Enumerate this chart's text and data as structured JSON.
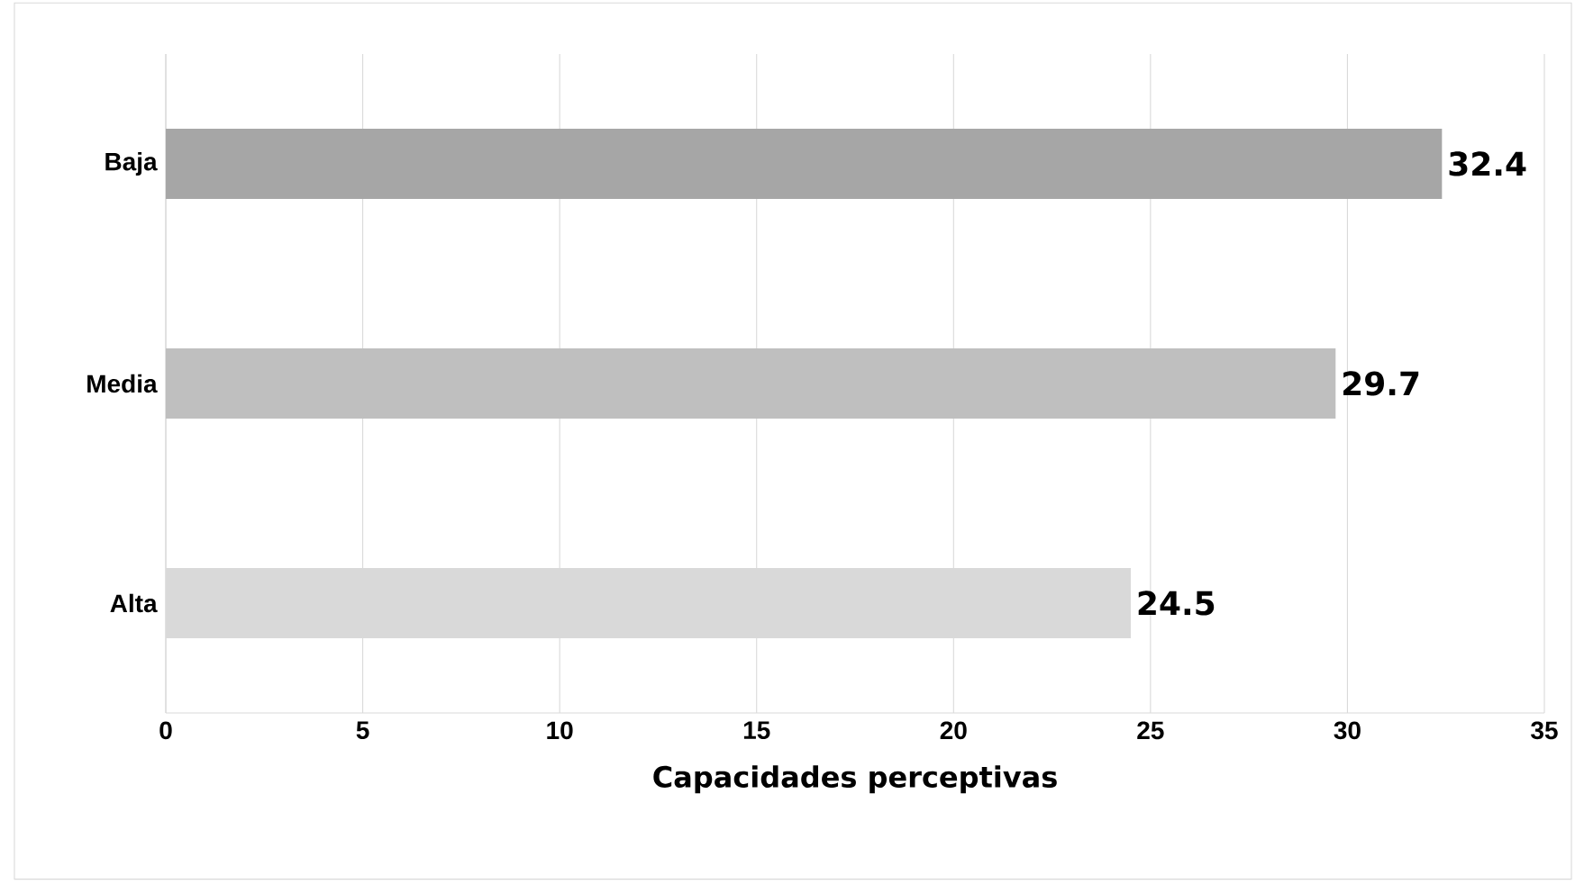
{
  "chart_data": {
    "type": "bar",
    "orientation": "horizontal",
    "xlabel": "Capacidades perceptivas",
    "categories": [
      "Baja",
      "Media",
      "Alta"
    ],
    "values": [
      32.4,
      29.7,
      24.5
    ],
    "colors": [
      "#a6a6a6",
      "#bfbfbf",
      "#d9d9d9"
    ],
    "xlim": [
      0,
      35
    ],
    "xticks": [
      0,
      5,
      10,
      15,
      20,
      25,
      30,
      35
    ],
    "grid": "x",
    "data_labels": true
  }
}
